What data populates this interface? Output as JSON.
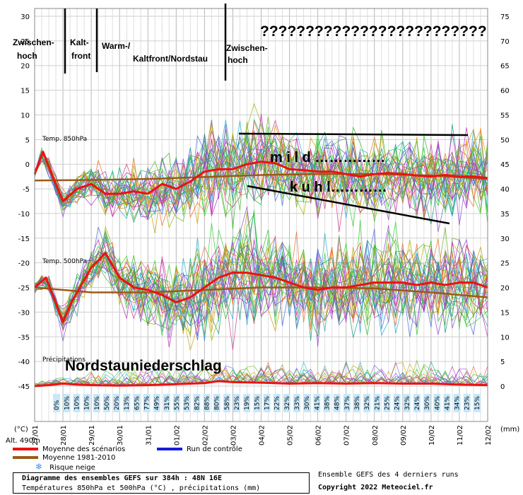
{
  "chart_data": {
    "type": "line",
    "left_axis": {
      "label": "(°C)",
      "ticks": [
        30,
        25,
        20,
        15,
        10,
        5,
        0,
        -5,
        -10,
        -15,
        -20,
        -25,
        -30,
        -35,
        -40,
        -45
      ],
      "ylim": [
        -45,
        30
      ]
    },
    "right_axis": {
      "label": "(mm)",
      "ticks": [
        75,
        70,
        65,
        60,
        55,
        50,
        45,
        40,
        35,
        30,
        25,
        20,
        15,
        10,
        5,
        0
      ],
      "ylim": [
        0,
        75
      ]
    },
    "x_dates": [
      "27/01",
      "28/01",
      "29/01",
      "30/01",
      "31/01",
      "01/02",
      "02/02",
      "03/02",
      "04/02",
      "05/02",
      "06/02",
      "07/02",
      "08/02",
      "09/02",
      "10/02",
      "11/02",
      "12/02"
    ],
    "panel_labels": {
      "t850": "Temp. 850hPa",
      "t500": "Temp. 500hPa",
      "precip": "Précipitations"
    },
    "altitude": "Alt. 490m",
    "snow_risk_percent": [
      "0%",
      "10%",
      "10%",
      "10%",
      "10%",
      "50%",
      "20%",
      "13%",
      "65%",
      "77%",
      "49%",
      "31%",
      "55%",
      "53%",
      "82%",
      "88%",
      "80%",
      "58%",
      "23%",
      "19%",
      "15%",
      "17%",
      "22%",
      "32%",
      "33%",
      "30%",
      "41%",
      "38%",
      "48%",
      "37%",
      "38%",
      "32%",
      "21%",
      "25%",
      "24%",
      "32%",
      "24%",
      "30%",
      "40%",
      "41%",
      "34%",
      "23%",
      "15%"
    ],
    "series": [
      {
        "name": "Moyenne des scénarios",
        "color": "#ee1111",
        "t850": [
          [
            0,
            -2
          ],
          [
            0.3,
            2.5
          ],
          [
            0.6,
            -2
          ],
          [
            1,
            -7.5
          ],
          [
            1.5,
            -5
          ],
          [
            2,
            -4
          ],
          [
            2.5,
            -6
          ],
          [
            3,
            -6
          ],
          [
            3.5,
            -5.5
          ],
          [
            4,
            -6
          ],
          [
            4.5,
            -4
          ],
          [
            5,
            -5
          ],
          [
            5.5,
            -3.5
          ],
          [
            6,
            -1.5
          ],
          [
            6.5,
            -1
          ],
          [
            7,
            -1
          ],
          [
            7.5,
            0
          ],
          [
            8,
            0.5
          ],
          [
            8.5,
            0.2
          ],
          [
            9,
            -1
          ],
          [
            9.5,
            -1.2
          ],
          [
            10,
            -1.5
          ],
          [
            10.5,
            -1.5
          ],
          [
            11,
            -2
          ],
          [
            11.5,
            -2.5
          ],
          [
            12,
            -2
          ],
          [
            12.5,
            -1.8
          ],
          [
            13,
            -2
          ],
          [
            13.5,
            -2.3
          ],
          [
            14,
            -2.5
          ],
          [
            14.5,
            -2.2
          ],
          [
            15,
            -2.5
          ],
          [
            15.5,
            -2.5
          ],
          [
            16,
            -2.8
          ]
        ],
        "t500": [
          [
            0,
            -25
          ],
          [
            0.4,
            -23
          ],
          [
            1,
            -32
          ],
          [
            1.3,
            -28
          ],
          [
            2,
            -21
          ],
          [
            2.5,
            -18
          ],
          [
            3,
            -23
          ],
          [
            3.5,
            -25
          ],
          [
            4,
            -25.5
          ],
          [
            4.5,
            -26.5
          ],
          [
            5,
            -28
          ],
          [
            5.5,
            -27
          ],
          [
            6,
            -25
          ],
          [
            6.5,
            -23
          ],
          [
            7,
            -22
          ],
          [
            7.5,
            -22
          ],
          [
            8,
            -22.5
          ],
          [
            8.5,
            -23
          ],
          [
            9,
            -24
          ],
          [
            9.5,
            -25
          ],
          [
            10,
            -25.5
          ],
          [
            10.5,
            -25
          ],
          [
            11,
            -25
          ],
          [
            11.5,
            -24.5
          ],
          [
            12,
            -24
          ],
          [
            12.5,
            -24
          ],
          [
            13,
            -24
          ],
          [
            13.5,
            -24.5
          ],
          [
            14,
            -24
          ],
          [
            14.5,
            -24.5
          ],
          [
            15,
            -24
          ],
          [
            15.5,
            -24
          ],
          [
            16,
            -25
          ]
        ],
        "precip": [
          [
            0,
            0
          ],
          [
            0.5,
            0.2
          ],
          [
            1,
            0.5
          ],
          [
            1.5,
            0.3
          ],
          [
            2,
            0.2
          ],
          [
            3,
            0.1
          ],
          [
            4,
            0.2
          ],
          [
            5,
            0.4
          ],
          [
            6,
            0.6
          ],
          [
            6.5,
            1
          ],
          [
            7,
            0.8
          ],
          [
            8,
            0.7
          ],
          [
            9,
            0.5
          ],
          [
            10,
            0.6
          ],
          [
            11,
            0.5
          ],
          [
            12,
            0.6
          ],
          [
            13,
            0.5
          ],
          [
            14,
            0.5
          ],
          [
            15,
            0.3
          ],
          [
            16,
            0.2
          ]
        ]
      },
      {
        "name": "Moyenne 1981-2010",
        "color": "#9b5a16",
        "t850": [
          [
            0,
            -3.3
          ],
          [
            2,
            -3.2
          ],
          [
            4,
            -3
          ],
          [
            6,
            -2.6
          ],
          [
            8,
            -2.2
          ],
          [
            10,
            -2
          ],
          [
            12,
            -2
          ],
          [
            14,
            -2.3
          ],
          [
            16,
            -3
          ]
        ],
        "t500": [
          [
            0,
            -25
          ],
          [
            2,
            -26
          ],
          [
            4,
            -26
          ],
          [
            6,
            -25.5
          ],
          [
            8,
            -25
          ],
          [
            10,
            -25
          ],
          [
            12,
            -25.2
          ],
          [
            14,
            -26
          ],
          [
            16,
            -27
          ]
        ]
      },
      {
        "name": "Run de contrôle",
        "color": "#1a1adc"
      }
    ],
    "legend_extra": "Risque neige",
    "title": "Diagramme des ensembles GEFS sur 384h : 48N 16E",
    "subtitle": "Températures 850hPa et 500hPa (°C) , précipitations (mm)",
    "source_note": "Ensemble GEFS des 4 derniers runs",
    "copyright": "Copyright 2022 Meteociel.fr",
    "annotations": {
      "qmarks": "?????????????????????????",
      "zwischenhoch_1": "Zwischen-\nhoch",
      "kaltfront": "Kalt-\nfront",
      "warm": "Warm-/",
      "kaltfront_nordstau": "Kaltfront/Nordstau",
      "zwischenhoch_2": "Zwischen-\nhoch",
      "mild": "m i l d ……………",
      "kuhl": "k u h l…………",
      "nordstau": "Nordstauniederschlag"
    }
  }
}
